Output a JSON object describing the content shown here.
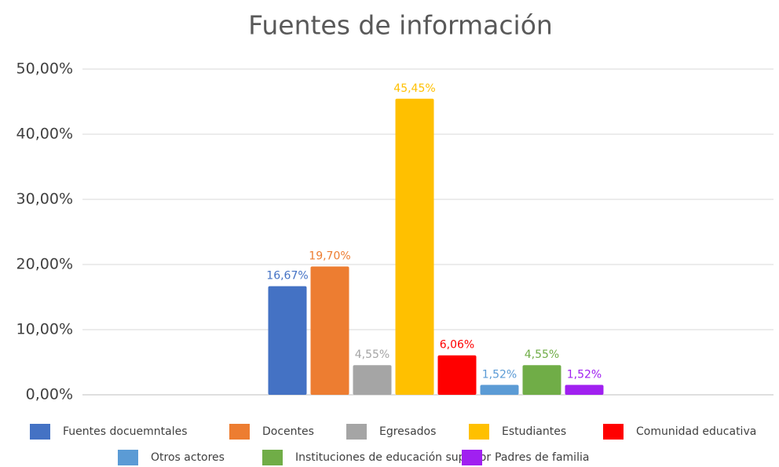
{
  "chart_data": {
    "type": "bar",
    "title": "Fuentes de información",
    "categories": [
      null
    ],
    "series": [
      {
        "name": "Fuentes docuemntales",
        "color": "#4472c4",
        "values": [
          16.67
        ],
        "value_labels": [
          "16,67%"
        ]
      },
      {
        "name": "Docentes",
        "color": "#ed7d31",
        "values": [
          19.7
        ],
        "value_labels": [
          "19,70%"
        ]
      },
      {
        "name": "Egresados",
        "color": "#a5a5a5",
        "values": [
          4.55
        ],
        "value_labels": [
          "4,55%"
        ]
      },
      {
        "name": "Estudiantes",
        "color": "#ffc000",
        "values": [
          45.45
        ],
        "value_labels": [
          "45,45%"
        ]
      },
      {
        "name": "Comunidad educativa",
        "color": "#ff0000",
        "values": [
          6.06
        ],
        "value_labels": [
          "6,06%"
        ]
      },
      {
        "name": "Otros actores",
        "color": "#5b9bd5",
        "values": [
          1.52
        ],
        "value_labels": [
          "1,52%"
        ]
      },
      {
        "name": "Instituciones de educación superior",
        "color": "#70ad47",
        "values": [
          4.55
        ],
        "value_labels": [
          "4,55%"
        ]
      },
      {
        "name": "Padres de familia",
        "color": "#a020f0",
        "values": [
          1.52
        ],
        "value_labels": [
          "1,52%"
        ]
      }
    ],
    "ylim": [
      0,
      50
    ],
    "yticks": [
      {
        "value": 0,
        "label": "0,00%"
      },
      {
        "value": 10,
        "label": "10,00%"
      },
      {
        "value": 20,
        "label": "20,00%"
      },
      {
        "value": 30,
        "label": "30,00%"
      },
      {
        "value": 40,
        "label": "40,00%"
      },
      {
        "value": 50,
        "label": "50,00%"
      }
    ],
    "grid": true,
    "legend": "bottom"
  }
}
